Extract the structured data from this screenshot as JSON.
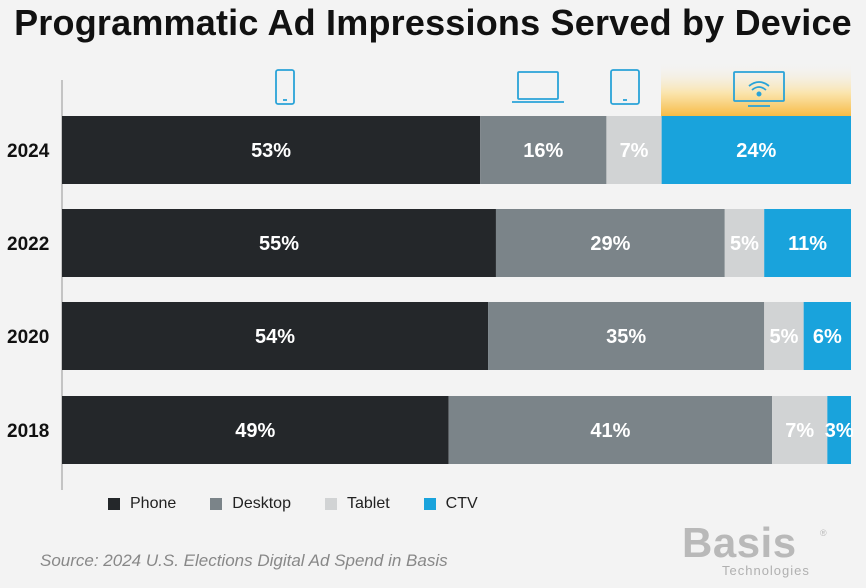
{
  "title": "Programmatic Ad Impressions Served by Device",
  "source": "Source: 2024 U.S. Elections Digital Ad Spend in Basis",
  "logo": {
    "word": "Basis",
    "reg": "®",
    "sub": "Technologies"
  },
  "icons": [
    "phone-icon",
    "desktop-icon",
    "tablet-icon",
    "ctv-icon"
  ],
  "chart_data": {
    "type": "bar",
    "orientation": "horizontal",
    "stacked": true,
    "categories": [
      "2024",
      "2022",
      "2020",
      "2018"
    ],
    "series": [
      {
        "name": "Phone",
        "color": "#24272a",
        "values": [
          53,
          55,
          54,
          49
        ]
      },
      {
        "name": "Desktop",
        "color": "#7b8489",
        "values": [
          16,
          29,
          35,
          41
        ]
      },
      {
        "name": "Tablet",
        "color": "#d1d3d4",
        "values": [
          7,
          5,
          5,
          7
        ]
      },
      {
        "name": "CTV",
        "color": "#19a3dc",
        "values": [
          24,
          11,
          6,
          3
        ]
      }
    ],
    "value_suffix": "%",
    "legend_position": "bottom",
    "grid": false
  }
}
